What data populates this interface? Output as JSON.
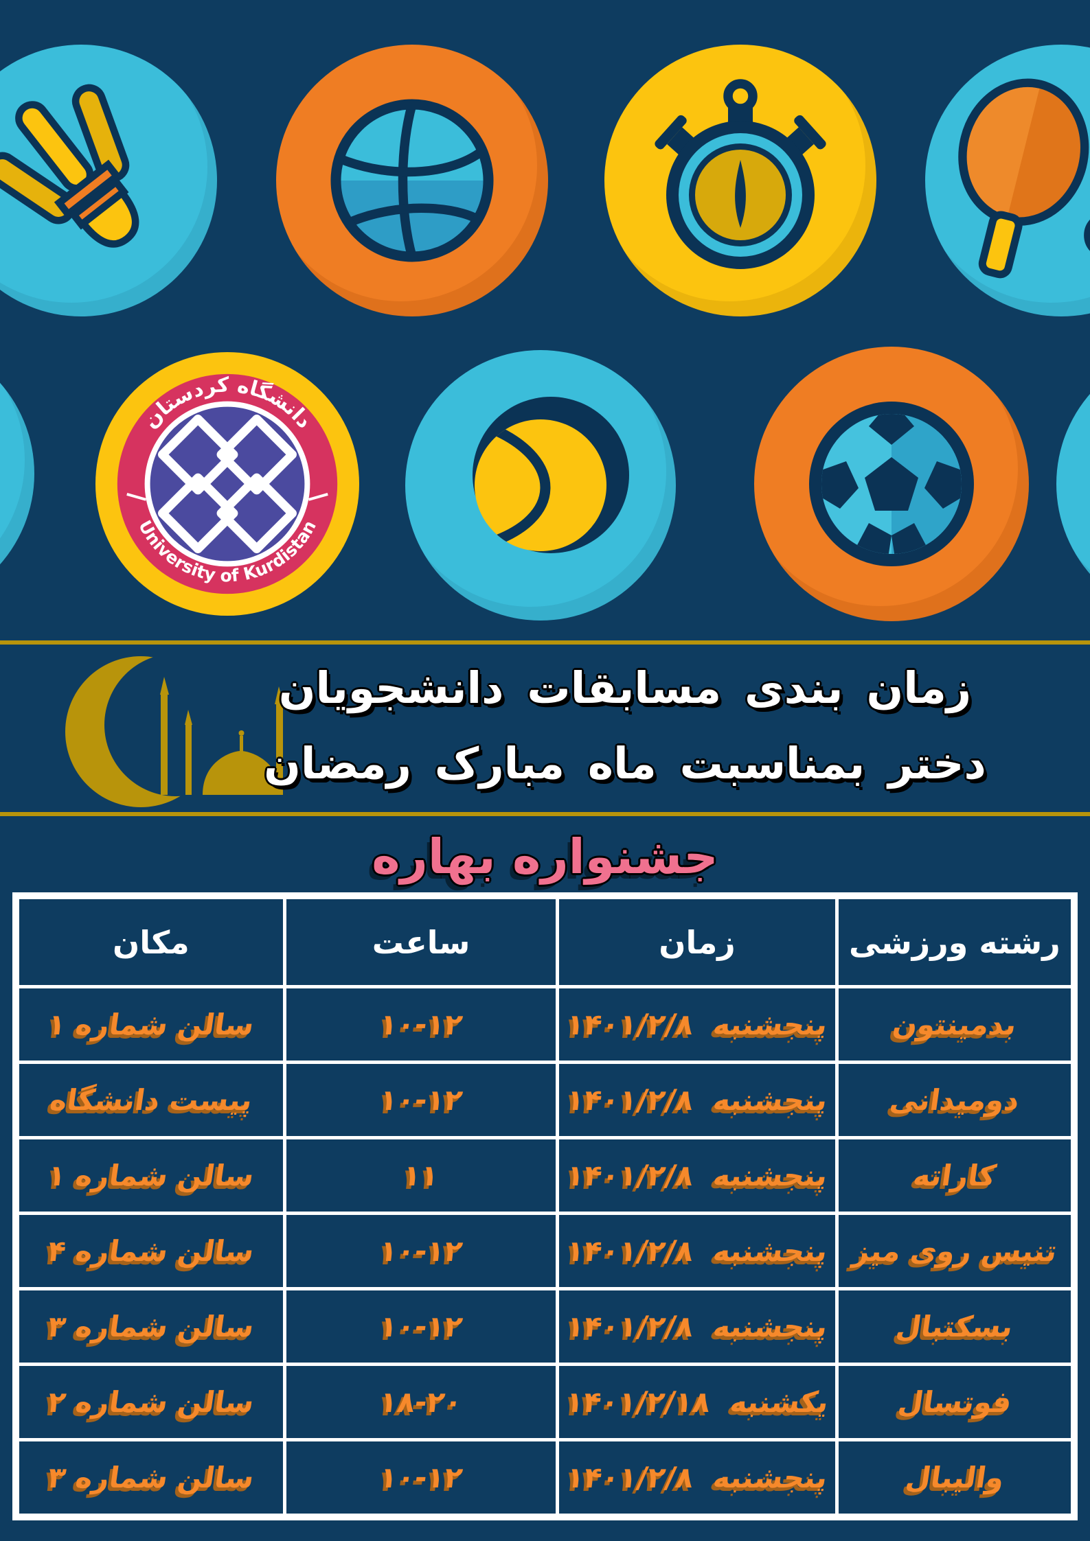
{
  "colors": {
    "navy": "#0e3c60",
    "stroke": "#0b3355",
    "lightblue": "#3bbdda",
    "orange": "#ef7d23",
    "yellow": "#fcc40f",
    "gold": "#b8940b",
    "crimson": "#d6335f",
    "indigo": "#4b4a9f",
    "pink": "#f0718f",
    "textorange": "#f6892b",
    "orangeshadow": "#a5621a"
  },
  "icons": [
    "badminton-shuttlecock",
    "volleyball",
    "stopwatch",
    "table-tennis-paddle",
    "university-logo",
    "tennis-ball",
    "soccer-ball",
    "crescent-mosque"
  ],
  "logo": {
    "top_text": "دانشگاه کردستان",
    "bottom_text": "University of Kurdistan"
  },
  "banner": {
    "line1": "زمان بندی مسابقات دانشجویان",
    "line2": "دختر بمناسبت ماه مبارک رمضان"
  },
  "festival_title": "جشنواره بهاره",
  "table": {
    "headers": {
      "sport": "رشته ورزشی",
      "date": "زمان",
      "hour": "ساعت",
      "place": "مکان"
    },
    "rows": [
      {
        "sport": "بدمینتون",
        "day": "پنجشنبه",
        "date": "۱۴۰۱/۲/۸",
        "hour": "۱۰-۱۲",
        "place": "سالن شماره ۱"
      },
      {
        "sport": "دومیدانی",
        "day": "پنجشنبه",
        "date": "۱۴۰۱/۲/۸",
        "hour": "۱۰-۱۲",
        "place": "پیست دانشگاه"
      },
      {
        "sport": "کاراته",
        "day": "پنجشنبه",
        "date": "۱۴۰۱/۲/۸",
        "hour": "۱۱",
        "place": "سالن شماره ۱"
      },
      {
        "sport": "تنیس روی میز",
        "day": "پنجشنبه",
        "date": "۱۴۰۱/۲/۸",
        "hour": "۱۰-۱۲",
        "place": "سالن شماره ۴"
      },
      {
        "sport": "بسکتبال",
        "day": "پنجشنبه",
        "date": "۱۴۰۱/۲/۸",
        "hour": "۱۰-۱۲",
        "place": "سالن شماره ۳"
      },
      {
        "sport": "فوتسال",
        "day": "یکشنبه",
        "date": "۱۴۰۱/۲/۱۸",
        "hour": "۱۸-۲۰",
        "place": "سالن شماره ۲"
      },
      {
        "sport": "والیبال",
        "day": "پنجشنبه",
        "date": "۱۴۰۱/۲/۸",
        "hour": "۱۰-۱۲",
        "place": "سالن شماره ۳"
      }
    ]
  }
}
